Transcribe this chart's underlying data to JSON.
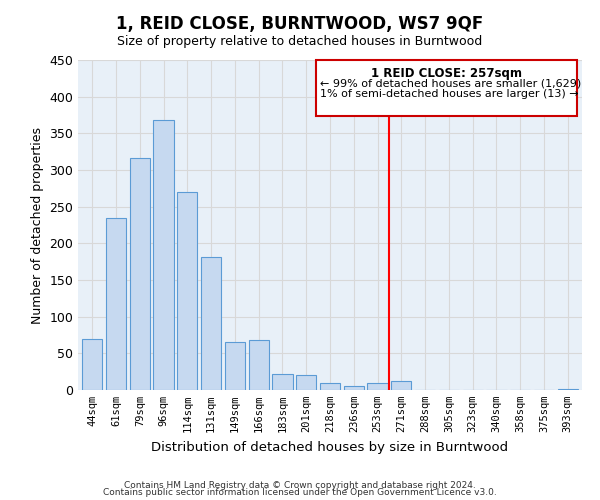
{
  "title": "1, REID CLOSE, BURNTWOOD, WS7 9QF",
  "subtitle": "Size of property relative to detached houses in Burntwood",
  "xlabel": "Distribution of detached houses by size in Burntwood",
  "ylabel": "Number of detached properties",
  "bar_labels": [
    "44sqm",
    "61sqm",
    "79sqm",
    "96sqm",
    "114sqm",
    "131sqm",
    "149sqm",
    "166sqm",
    "183sqm",
    "201sqm",
    "218sqm",
    "236sqm",
    "253sqm",
    "271sqm",
    "288sqm",
    "305sqm",
    "323sqm",
    "340sqm",
    "358sqm",
    "375sqm",
    "393sqm"
  ],
  "bar_values": [
    70,
    235,
    317,
    368,
    270,
    182,
    65,
    68,
    22,
    20,
    10,
    5,
    10,
    12,
    0,
    0,
    0,
    0,
    0,
    0,
    2
  ],
  "bar_color": "#c6d9f0",
  "bar_edge_color": "#5b9bd5",
  "vline_x": 12.5,
  "vline_color": "#ff0000",
  "legend_title": "1 REID CLOSE: 257sqm",
  "legend_line1": "← 99% of detached houses are smaller (1,629)",
  "legend_line2": "1% of semi-detached houses are larger (13) →",
  "ylim": [
    0,
    450
  ],
  "yticks": [
    0,
    50,
    100,
    150,
    200,
    250,
    300,
    350,
    400,
    450
  ],
  "footer1": "Contains HM Land Registry data © Crown copyright and database right 2024.",
  "footer2": "Contains public sector information licensed under the Open Government Licence v3.0.",
  "bg_color": "#ffffff",
  "grid_color": "#d8d8d8"
}
